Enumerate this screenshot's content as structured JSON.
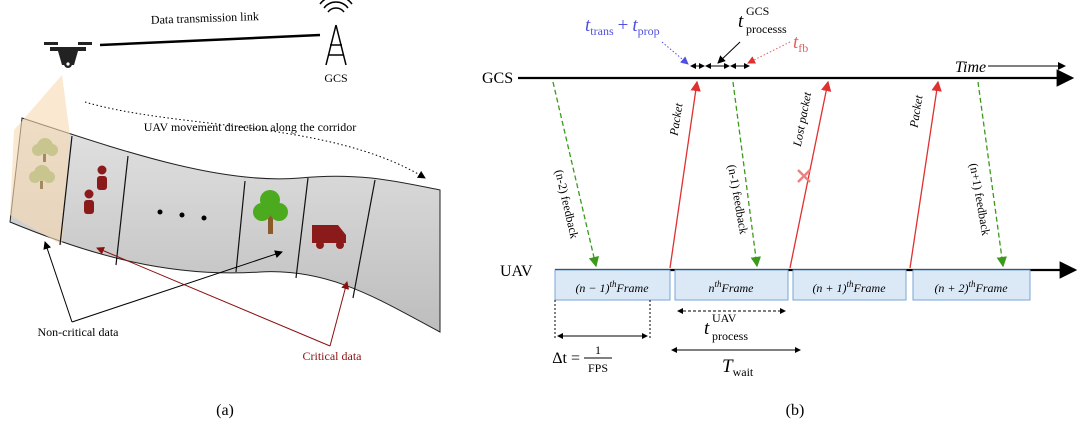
{
  "panel_a": {
    "link_label": "Data transmission link",
    "gcs_label": "GCS",
    "direction_label": "UAV movement direction along the corridor",
    "non_critical_label": "Non-critical data",
    "critical_label": "Critical data",
    "caption": "(a)"
  },
  "panel_b": {
    "gcs_label": "GCS",
    "uav_label": "UAV",
    "time_label": "Time",
    "t_trans_prop": [
      "t",
      "trans",
      "+",
      "t",
      "prop"
    ],
    "t_gcs_process": {
      "symbol": "t",
      "sup": "GCS",
      "sub": "processs"
    },
    "t_fb": {
      "symbol": "t",
      "sub": "fb"
    },
    "packets": [
      "Packet",
      "Lost packet",
      "Packet"
    ],
    "feedbacks": [
      "(n-2) feedback",
      "(n-1) feedback",
      "(n+1) feedback"
    ],
    "frames": [
      {
        "index": "(n − 1)",
        "sup": "th",
        "label": "Frame"
      },
      {
        "index": "n",
        "sup": "th",
        "label": "Frame"
      },
      {
        "index": "(n + 1)",
        "sup": "th",
        "label": "Frame"
      },
      {
        "index": "(n + 2)",
        "sup": "th",
        "label": "Frame"
      }
    ],
    "t_uav_process": {
      "symbol": "t",
      "sup": "UAV",
      "sub": "process"
    },
    "delta_t": {
      "lhs": "Δt =",
      "numerator": "1",
      "denominator": "FPS"
    },
    "t_wait": {
      "symbol": "T",
      "sub": "wait"
    },
    "caption": "(b)"
  }
}
